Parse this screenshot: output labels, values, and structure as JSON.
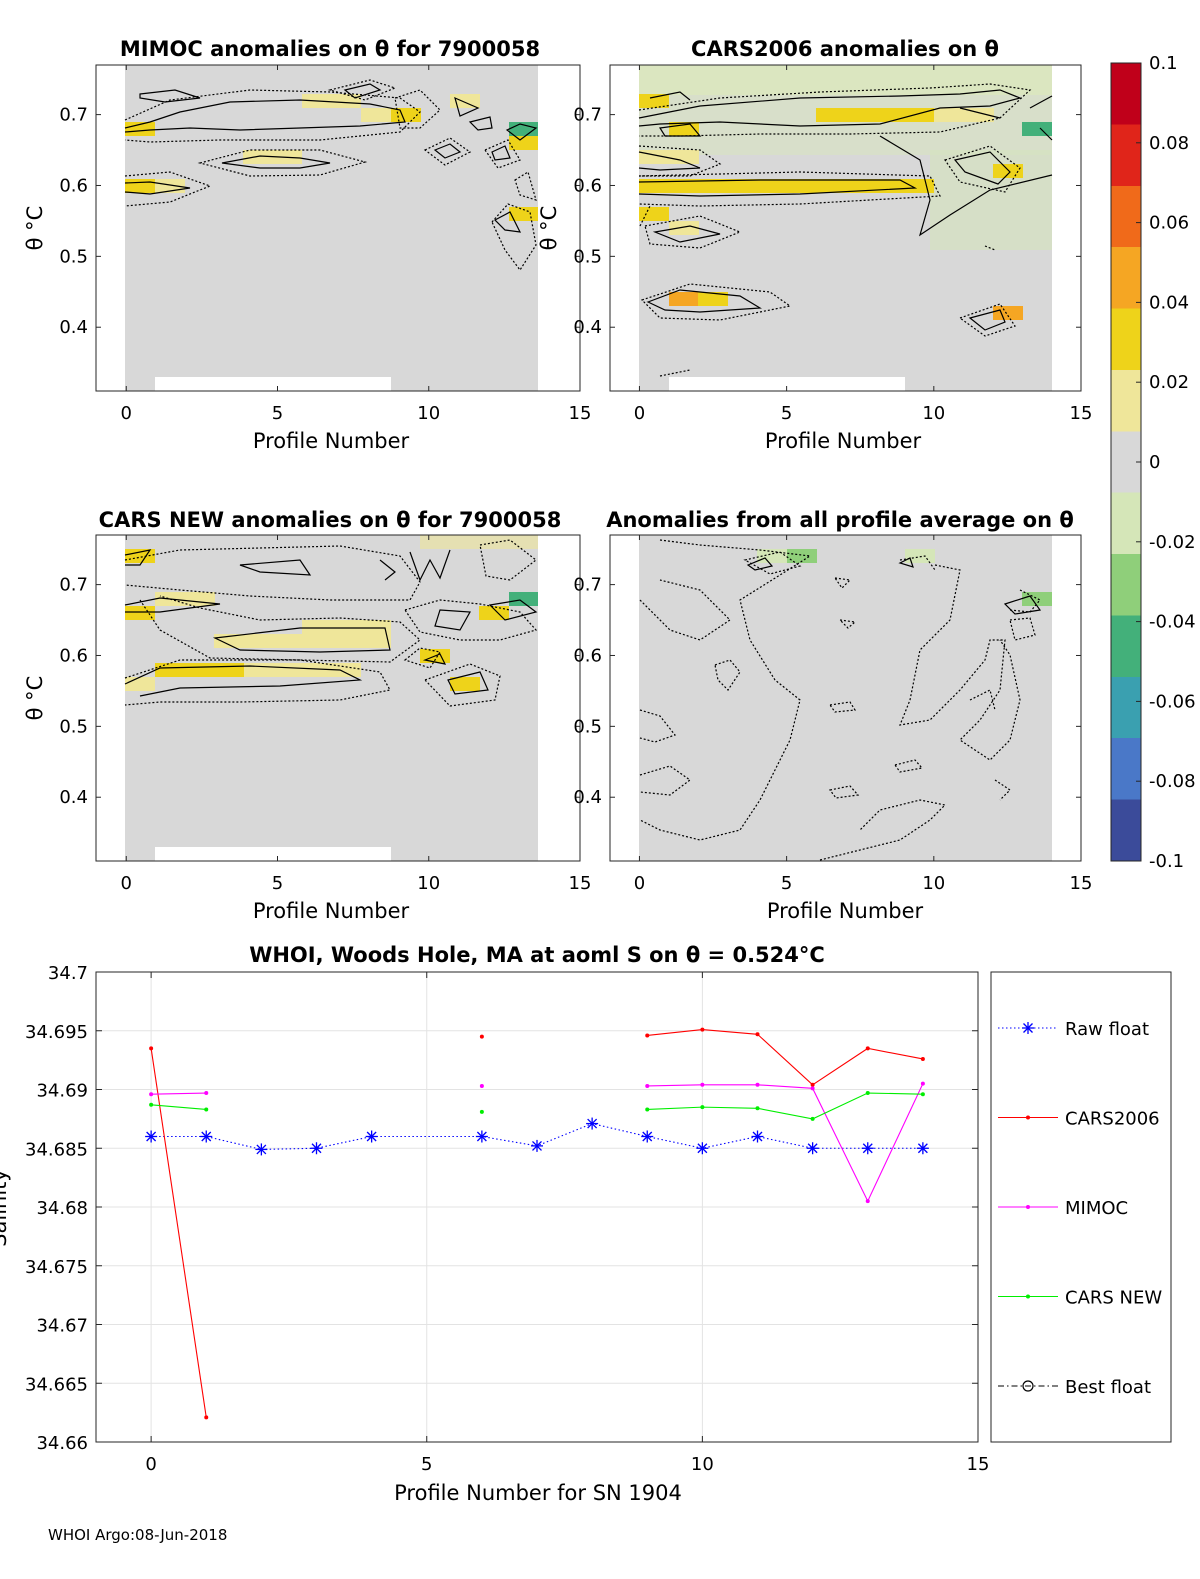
{
  "panels": [
    {
      "id": "mimoc",
      "title": "MIMOC anomalies on θ  for 7900058",
      "xlabel": "Profile Number",
      "ylabel": "θ °C",
      "xticks": [
        "0",
        "5",
        "10",
        "15"
      ],
      "yticks": [
        "0.4",
        "0.5",
        "0.6",
        "0.7"
      ],
      "xlim": [
        -1,
        15
      ],
      "ylim": [
        0.31,
        0.77
      ]
    },
    {
      "id": "cars2006",
      "title": "CARS2006 anomalies on θ",
      "xlabel": "Profile Number",
      "ylabel": "θ °C",
      "xticks": [
        "0",
        "5",
        "10",
        "15"
      ],
      "yticks": [
        "0.4",
        "0.5",
        "0.6",
        "0.7"
      ],
      "xlim": [
        -1,
        15
      ],
      "ylim": [
        0.31,
        0.77
      ]
    },
    {
      "id": "carsnew",
      "title": "CARS NEW anomalies on θ for 7900058",
      "xlabel": "Profile Number",
      "ylabel": "θ °C",
      "xticks": [
        "0",
        "5",
        "10",
        "15"
      ],
      "yticks": [
        "0.4",
        "0.5",
        "0.6",
        "0.7"
      ],
      "xlim": [
        -1,
        15
      ],
      "ylim": [
        0.31,
        0.77
      ]
    },
    {
      "id": "allavg",
      "title": "Anomalies from all profile average on θ",
      "xlabel": "Profile Number",
      "ylabel": "",
      "xticks": [
        "0",
        "5",
        "10",
        "15"
      ],
      "yticks": [
        "0.4",
        "0.5",
        "0.6",
        "0.7"
      ],
      "xlim": [
        -1,
        15
      ],
      "ylim": [
        0.31,
        0.77
      ]
    }
  ],
  "colorbar": {
    "ticks": [
      "0.1",
      "0.08",
      "0.06",
      "0.04",
      "0.02",
      "0",
      "-0.02",
      "-0.04",
      "-0.06",
      "-0.08",
      "-0.1"
    ],
    "range": [
      -0.1,
      0.1
    ],
    "colors": [
      "#3b4b9a",
      "#4a78c8",
      "#3aa0b0",
      "#43b07a",
      "#8fcf7a",
      "#d5e6b8",
      "#d8d8d8",
      "#efe69a",
      "#eed31a",
      "#f5a623",
      "#f06a1a",
      "#e0251a",
      "#c0001a"
    ]
  },
  "chart_data": {
    "type": "line",
    "title": "WHOI, Woods Hole, MA at aoml S on θ = 0.524°C",
    "xlabel": "Profile Number for SN 1904",
    "ylabel": "Salinity",
    "xlim": [
      -1,
      15
    ],
    "ylim": [
      34.66,
      34.7
    ],
    "xticks": [
      "0",
      "5",
      "10",
      "15"
    ],
    "yticks": [
      "34.7",
      "34.695",
      "34.69",
      "34.685",
      "34.68",
      "34.675",
      "34.67",
      "34.665",
      "34.66"
    ],
    "grid": true,
    "legend_position": "right-outside",
    "series": [
      {
        "name": "Raw float",
        "color": "#0000ff",
        "marker": "star",
        "style": "dotted",
        "x": [
          0,
          1,
          2,
          3,
          4,
          6,
          7,
          8,
          9,
          10,
          11,
          12,
          13,
          14
        ],
        "values": [
          34.686,
          34.686,
          34.6849,
          34.685,
          34.686,
          34.686,
          34.6852,
          34.6871,
          34.686,
          34.685,
          34.686,
          34.685,
          34.685,
          34.685
        ]
      },
      {
        "name": "CARS2006",
        "color": "#ff0000",
        "marker": "dot",
        "style": "solid",
        "x": [
          0,
          1,
          null,
          6,
          null,
          9,
          10,
          11,
          12,
          13,
          14
        ],
        "values": [
          34.6935,
          34.6621,
          null,
          34.6945,
          null,
          34.6946,
          34.6951,
          34.6947,
          34.6904,
          34.6935,
          34.6926
        ]
      },
      {
        "name": "MIMOC",
        "color": "#ff00ff",
        "marker": "dot",
        "style": "solid",
        "x": [
          0,
          1,
          null,
          6,
          null,
          9,
          10,
          11,
          12,
          13,
          14
        ],
        "values": [
          34.6896,
          34.6897,
          null,
          34.6903,
          null,
          34.6903,
          34.6904,
          34.6904,
          34.6901,
          34.6805,
          34.6905
        ]
      },
      {
        "name": "CARS NEW",
        "color": "#00ee00",
        "marker": "dot",
        "style": "solid",
        "x": [
          0,
          1,
          null,
          6,
          null,
          9,
          10,
          11,
          12,
          13,
          14
        ],
        "values": [
          34.6887,
          34.6883,
          null,
          34.6881,
          null,
          34.6883,
          34.6885,
          34.6884,
          34.6875,
          34.6897,
          34.6896
        ]
      },
      {
        "name": "Best float",
        "color": "#000000",
        "marker": "circle",
        "style": "dashdot",
        "x": [],
        "values": []
      }
    ]
  },
  "footer": "WHOI Argo:08-Jun-2018"
}
